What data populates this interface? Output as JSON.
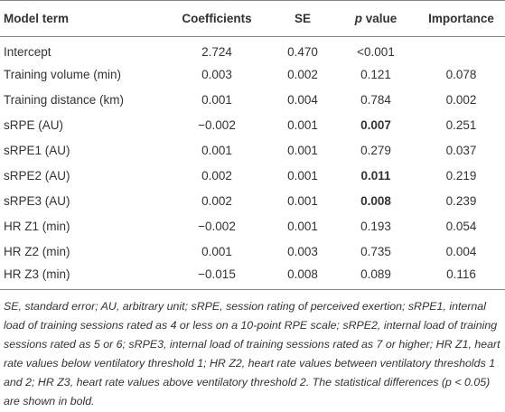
{
  "table": {
    "headers": [
      "Model term",
      "Coefficients",
      "SE",
      {
        "italic": "p",
        "rest": " value"
      },
      "Importance"
    ],
    "rows": [
      [
        "Intercept",
        "2.724",
        "0.470",
        "<0.001",
        null
      ],
      [
        "Training volume (min)",
        "0.003",
        "0.002",
        "0.121",
        "0.078"
      ],
      [
        "Training distance (km)",
        "0.001",
        "0.004",
        "0.784",
        "0.002"
      ],
      [
        "sRPE (AU)",
        "−0.002",
        "0.001",
        {
          "text": "0.007",
          "bold": true
        },
        "0.251"
      ],
      [
        "sRPE1 (AU)",
        "0.001",
        "0.001",
        "0.279",
        "0.037"
      ],
      [
        "sRPE2 (AU)",
        "0.002",
        "0.001",
        {
          "text": "0.011",
          "bold": true
        },
        "0.219"
      ],
      [
        "sRPE3 (AU)",
        "0.002",
        "0.001",
        {
          "text": "0.008",
          "bold": true
        },
        "0.239"
      ],
      [
        "HR Z1 (min)",
        "−0.002",
        "0.001",
        "0.193",
        "0.054"
      ],
      [
        "HR Z2 (min)",
        "0.001",
        "0.003",
        "0.735",
        "0.004"
      ],
      [
        "HR Z3 (min)",
        "−0.015",
        "0.008",
        "0.089",
        "0.116"
      ]
    ],
    "footnote": "SE, standard error; AU, arbitrary unit; sRPE, session rating of perceived exertion; sRPE1, internal load of training sessions rated as 4 or less on a 10-point RPE scale; sRPE2, internal load of training sessions rated as 5 or 6; sRPE3, internal load of training sessions rated as 7 or higher; HR Z1, heart rate values below ventilatory threshold 1; HR Z2, heart rate values between ventilatory thresholds 1 and 2; HR Z3, heart rate values above ventilatory threshold 2. The statistical differences (p < 0.05) are shown in bold."
  }
}
